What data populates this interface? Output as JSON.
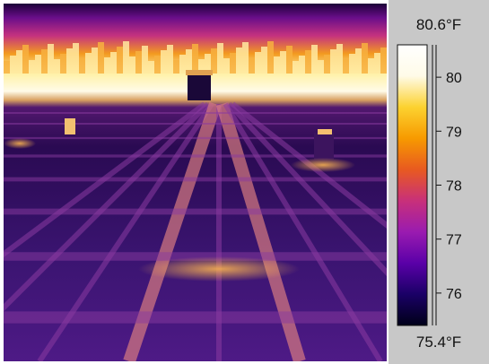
{
  "scale": {
    "max_label": "80.6°F",
    "min_label": "75.4°F",
    "max_value": 80.6,
    "min_value": 75.4,
    "ticks": [
      {
        "value": 80,
        "label": "80"
      },
      {
        "value": 79,
        "label": "79"
      },
      {
        "value": 78,
        "label": "78"
      },
      {
        "value": 77,
        "label": "77"
      },
      {
        "value": 76,
        "label": "76"
      }
    ],
    "palette": [
      "#000018",
      "#1a0066",
      "#5a00a8",
      "#9a1bb0",
      "#c8307a",
      "#e85a20",
      "#f79a00",
      "#fcd230",
      "#fffbe8",
      "#ffffff"
    ]
  }
}
